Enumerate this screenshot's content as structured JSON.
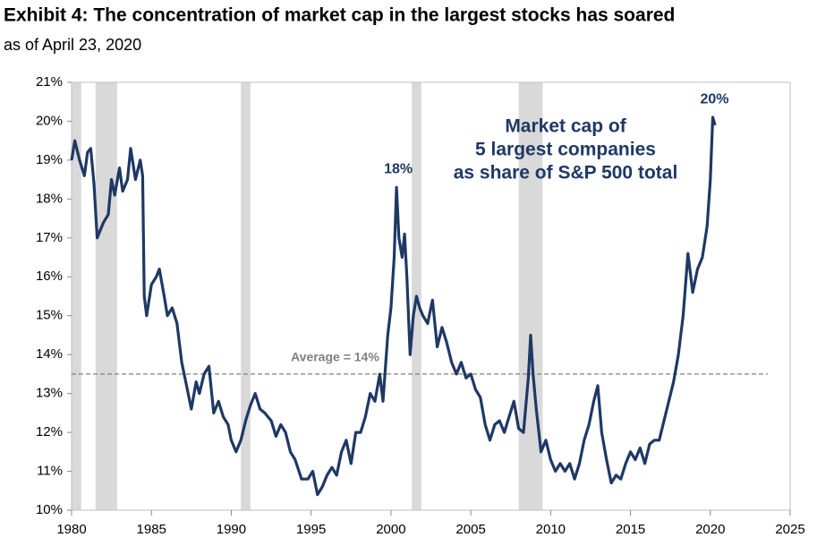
{
  "chart_data": {
    "type": "line",
    "title": "Exhibit 4: The concentration of market cap in the largest stocks has soared",
    "subtitle": "as of April 23, 2020",
    "x": [
      1980.0,
      1980.2,
      1980.5,
      1980.8,
      1981.0,
      1981.2,
      1981.4,
      1981.6,
      1981.8,
      1982.0,
      1982.3,
      1982.5,
      1982.7,
      1983.0,
      1983.2,
      1983.5,
      1983.7,
      1984.0,
      1984.3,
      1984.45,
      1984.55,
      1984.7,
      1985.0,
      1985.3,
      1985.5,
      1985.8,
      1986.0,
      1986.3,
      1986.6,
      1986.9,
      1987.2,
      1987.5,
      1987.8,
      1988.0,
      1988.3,
      1988.6,
      1988.9,
      1989.2,
      1989.5,
      1989.8,
      1990.0,
      1990.3,
      1990.6,
      1990.9,
      1991.2,
      1991.5,
      1991.8,
      1992.1,
      1992.5,
      1992.8,
      1993.1,
      1993.4,
      1993.7,
      1994.0,
      1994.4,
      1994.8,
      1995.1,
      1995.4,
      1995.7,
      1996.0,
      1996.3,
      1996.6,
      1996.9,
      1997.2,
      1997.5,
      1997.8,
      1998.1,
      1998.4,
      1998.7,
      1999.0,
      1999.3,
      1999.5,
      1999.8,
      2000.0,
      2000.2,
      2000.35,
      2000.5,
      2000.7,
      2000.85,
      2001.0,
      2001.2,
      2001.4,
      2001.6,
      2001.8,
      2002.0,
      2002.3,
      2002.6,
      2002.9,
      2003.2,
      2003.5,
      2003.8,
      2004.1,
      2004.4,
      2004.7,
      2005.0,
      2005.3,
      2005.6,
      2005.9,
      2006.2,
      2006.5,
      2006.8,
      2007.1,
      2007.4,
      2007.7,
      2008.0,
      2008.3,
      2008.6,
      2008.75,
      2008.9,
      2009.1,
      2009.4,
      2009.7,
      2010.0,
      2010.3,
      2010.6,
      2010.9,
      2011.2,
      2011.5,
      2011.8,
      2012.1,
      2012.4,
      2012.7,
      2012.95,
      2013.2,
      2013.5,
      2013.8,
      2014.1,
      2014.4,
      2014.7,
      2015.0,
      2015.3,
      2015.6,
      2015.9,
      2016.2,
      2016.5,
      2016.8,
      2017.1,
      2017.4,
      2017.7,
      2018.0,
      2018.3,
      2018.6,
      2018.9,
      2019.2,
      2019.5,
      2019.8,
      2020.0,
      2020.15,
      2020.3
    ],
    "series": [
      {
        "color": "#1f3864",
        "values": [
          19.0,
          19.5,
          19.0,
          18.6,
          19.2,
          19.3,
          18.4,
          17.0,
          17.2,
          17.4,
          17.6,
          18.5,
          18.1,
          18.8,
          18.2,
          18.5,
          19.3,
          18.5,
          19.0,
          18.6,
          15.5,
          15.0,
          15.8,
          16.0,
          16.2,
          15.5,
          15.0,
          15.2,
          14.8,
          13.8,
          13.2,
          12.6,
          13.3,
          13.0,
          13.5,
          13.7,
          12.5,
          12.8,
          12.4,
          12.2,
          11.8,
          11.5,
          11.8,
          12.3,
          12.7,
          13.0,
          12.6,
          12.5,
          12.3,
          11.9,
          12.2,
          12.0,
          11.5,
          11.3,
          10.8,
          10.8,
          11.0,
          10.4,
          10.6,
          10.9,
          11.1,
          10.9,
          11.5,
          11.8,
          11.2,
          12.0,
          12.0,
          12.4,
          13.0,
          12.8,
          13.5,
          12.8,
          14.5,
          15.2,
          16.5,
          18.3,
          17.0,
          16.5,
          17.1,
          16.0,
          14.0,
          15.0,
          15.5,
          15.2,
          15.0,
          14.8,
          15.4,
          14.2,
          14.7,
          14.3,
          13.8,
          13.5,
          13.8,
          13.4,
          13.5,
          13.1,
          12.9,
          12.2,
          11.8,
          12.2,
          12.3,
          12.0,
          12.4,
          12.8,
          12.1,
          12.0,
          13.4,
          14.5,
          13.5,
          12.6,
          11.5,
          11.8,
          11.3,
          11.0,
          11.2,
          11.0,
          11.2,
          10.8,
          11.2,
          11.8,
          12.2,
          12.8,
          13.2,
          12.0,
          11.3,
          10.7,
          10.9,
          10.8,
          11.2,
          11.5,
          11.3,
          11.6,
          11.2,
          11.7,
          11.8,
          11.8,
          12.3,
          12.8,
          13.3,
          14.0,
          15.0,
          16.6,
          15.6,
          16.2,
          16.5,
          17.3,
          18.5,
          20.1,
          19.9
        ]
      }
    ],
    "xlim": [
      1980,
      2025
    ],
    "xticks": [
      1980,
      1985,
      1990,
      1995,
      2000,
      2005,
      2010,
      2015,
      2020,
      2025
    ],
    "ylim": [
      10,
      21
    ],
    "yticks": [
      {
        "value": 10,
        "label": "10%"
      },
      {
        "value": 11,
        "label": "11%"
      },
      {
        "value": 12,
        "label": "12%"
      },
      {
        "value": 13,
        "label": "13%"
      },
      {
        "value": 14,
        "label": "14%"
      },
      {
        "value": 15,
        "label": "15%"
      },
      {
        "value": 16,
        "label": "16%"
      },
      {
        "value": 17,
        "label": "17%"
      },
      {
        "value": 18,
        "label": "18%"
      },
      {
        "value": 19,
        "label": "19%"
      },
      {
        "value": 20,
        "label": "20%"
      },
      {
        "value": 21,
        "label": "21%"
      }
    ],
    "recessions": [
      [
        1980.0,
        1980.6
      ],
      [
        1981.5,
        1982.85
      ],
      [
        1990.6,
        1991.2
      ],
      [
        2001.3,
        2001.9
      ],
      [
        2008.0,
        2009.5
      ]
    ],
    "average": {
      "value": 13.5,
      "label": "Average = 14%"
    },
    "annotations": [
      {
        "text": "18%",
        "x": 2000.35,
        "y": 18.3
      },
      {
        "text": "20%",
        "x": 2020.15,
        "y": 20.1
      }
    ],
    "series_label": [
      "Market cap of",
      "5 largest companies",
      "as share of S&P 500 total"
    ]
  }
}
